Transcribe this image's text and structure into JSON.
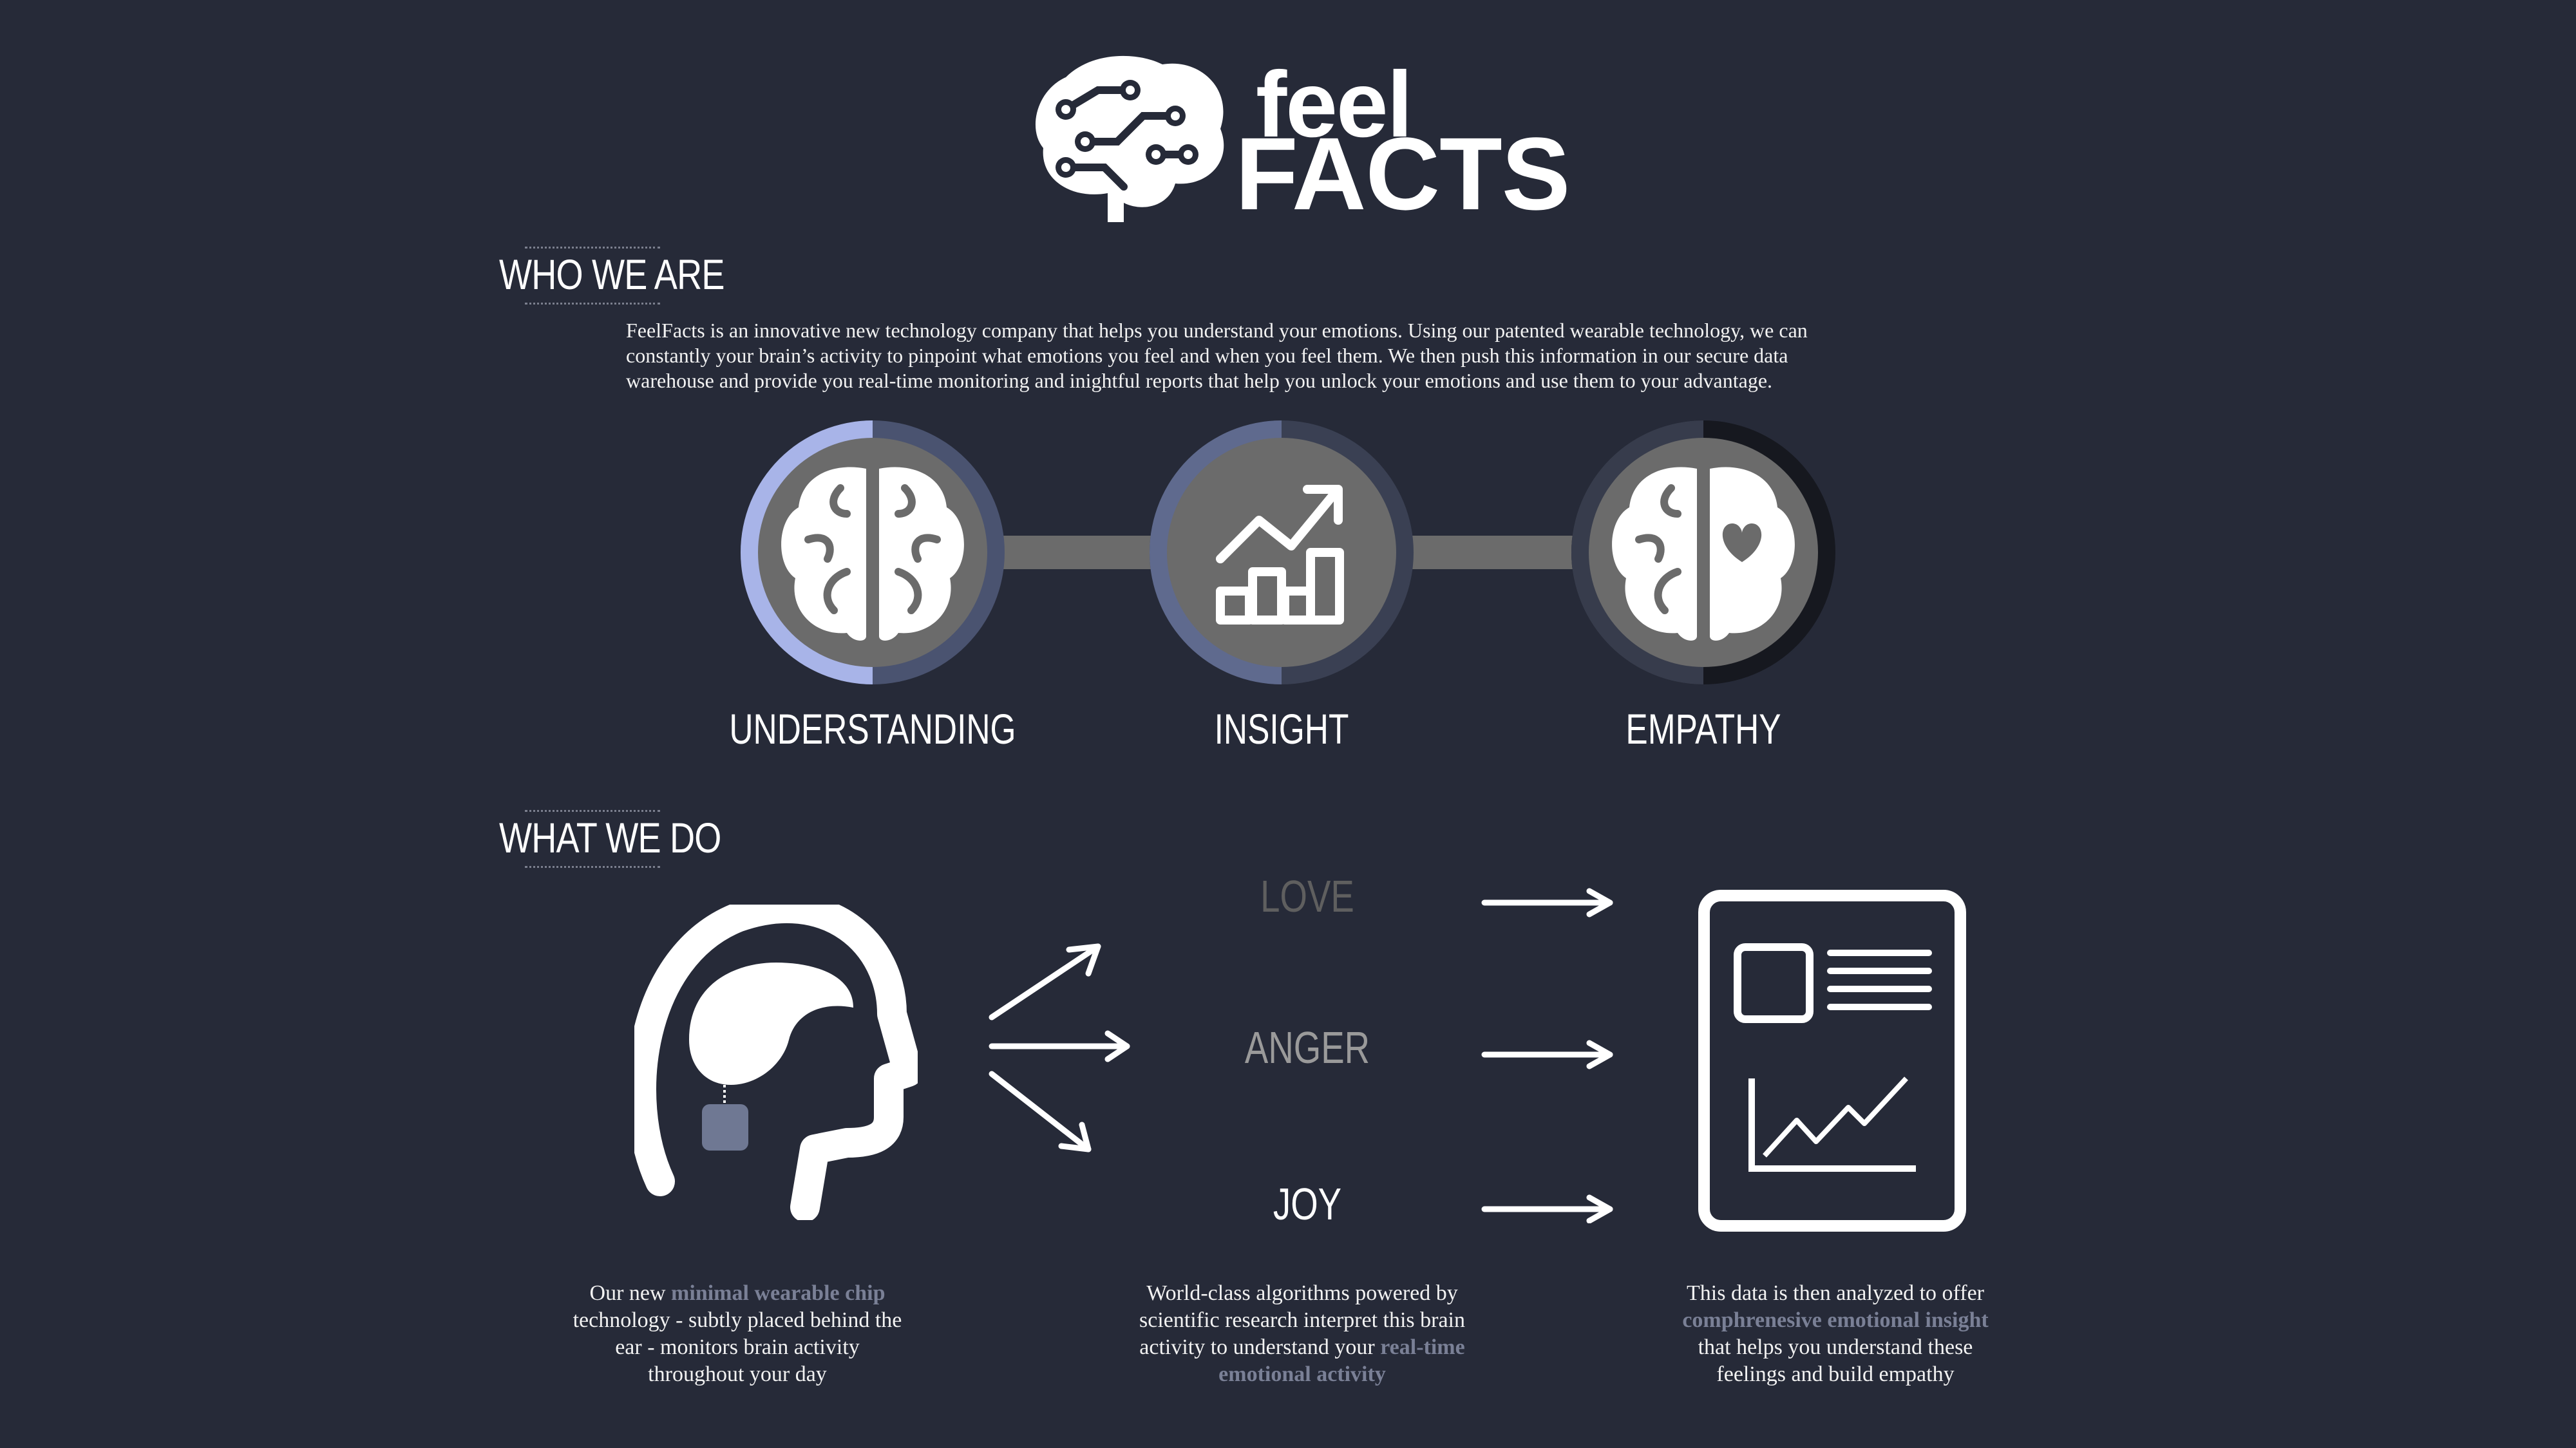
{
  "logo": {
    "line1": "feel",
    "line2": "FACTS",
    "icon": "circuit-brain-icon"
  },
  "who_we_are": {
    "heading": "WHO WE ARE",
    "line1": "FeelFacts is an innovative new technology company that helps you understand your emotions. Using our patented wearable technology, we can",
    "line2": "constantly your brain’s activity to pinpoint what emotions you feel and when you feel them. We then push this information in our secure data",
    "line3": "warehouse and provide you real-time monitoring and inightful reports that help you unlock your emotions and use them to your advantage."
  },
  "pillars": [
    {
      "label": "UNDERSTANDING",
      "icon": "brain-icon",
      "progress": 0.75
    },
    {
      "label": "INSIGHT",
      "icon": "growth-chart-icon",
      "progress": 0.5
    },
    {
      "label": "EMPATHY",
      "icon": "brain-heart-icon",
      "progress": 0.25
    }
  ],
  "what_we_do": {
    "heading": "WHAT WE DO",
    "emotions": [
      "LOVE",
      "ANGER",
      "JOY"
    ],
    "captions": [
      {
        "pre": "Our new ",
        "hl": "minimal wearable chip",
        "l2": "technology - subtly placed behind the",
        "l3": "ear - monitors brain activity",
        "l4": "throughout your day"
      },
      {
        "l1": "World-class algorithms powered by",
        "l2": "scientific research interpret this brain",
        "l3pre": "activity to understand your ",
        "l3hl": "real-time",
        "l4hl": "emotional activity"
      },
      {
        "l1": "This data is  then analyzed to offer",
        "l2hl": "comphrenesive emotional insight",
        "l3": "that helps you understand these",
        "l4": "feelings and build empathy"
      }
    ]
  },
  "colors": {
    "background": "#262a38",
    "accent": "#7a8096",
    "ring_active": "#a8b4e8",
    "ring_mid": "#5f6a8e",
    "circle_fill": "#6b6b6b"
  }
}
